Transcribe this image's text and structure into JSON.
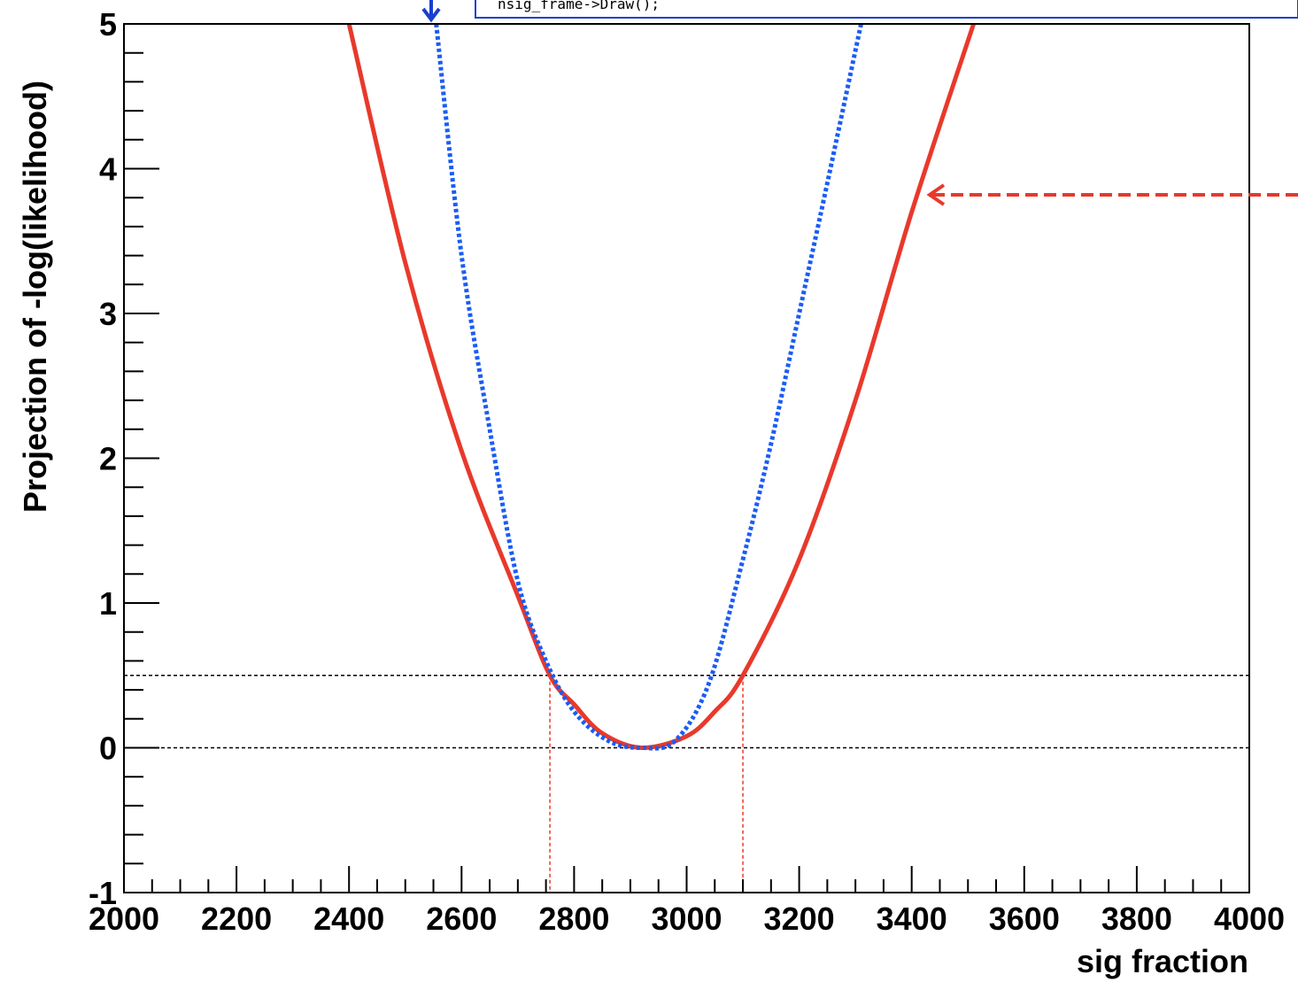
{
  "chart_data": {
    "type": "line",
    "xlabel": "sig fraction",
    "ylabel": "Projection of -log(likelihood)",
    "xlim": [
      2000,
      4000
    ],
    "ylim": [
      -1,
      5
    ],
    "x_ticks": [
      2000,
      2200,
      2400,
      2600,
      2800,
      3000,
      3200,
      3400,
      3600,
      3800,
      4000
    ],
    "y_ticks": [
      -1,
      0,
      1,
      2,
      3,
      4,
      5
    ],
    "series": [
      {
        "style": "solid",
        "color": "#e8392b",
        "points": [
          [
            2400,
            5.0
          ],
          [
            2500,
            3.35
          ],
          [
            2600,
            2.05
          ],
          [
            2700,
            1.05
          ],
          [
            2757,
            0.5
          ],
          [
            2800,
            0.3
          ],
          [
            2850,
            0.1
          ],
          [
            2920,
            0.0
          ],
          [
            3000,
            0.08
          ],
          [
            3050,
            0.25
          ],
          [
            3100,
            0.5
          ],
          [
            3200,
            1.3
          ],
          [
            3300,
            2.4
          ],
          [
            3400,
            3.7
          ],
          [
            3510,
            5.0
          ]
        ]
      },
      {
        "style": "dotted",
        "color": "#1a5cf5",
        "points": [
          [
            2555,
            5.0
          ],
          [
            2600,
            3.4
          ],
          [
            2650,
            2.2
          ],
          [
            2700,
            1.15
          ],
          [
            2750,
            0.6
          ],
          [
            2800,
            0.25
          ],
          [
            2860,
            0.05
          ],
          [
            2920,
            0.0
          ],
          [
            2980,
            0.05
          ],
          [
            3040,
            0.45
          ],
          [
            3100,
            1.3
          ],
          [
            3150,
            2.1
          ],
          [
            3200,
            3.0
          ],
          [
            3250,
            3.9
          ],
          [
            3310,
            5.0
          ]
        ]
      }
    ],
    "reference_lines": {
      "horizontal": [
        0,
        0.5
      ],
      "vertical": [
        2757,
        3100
      ]
    },
    "annotations": [
      {
        "text": "nsig_frame->Draw();"
      }
    ]
  },
  "colors": {
    "red_curve": "#e8392b",
    "blue_curve": "#1a5cf5",
    "reference_line": "#000000",
    "vertical_marker": "#e8392b",
    "code_box_border": "#1a3fd0"
  }
}
